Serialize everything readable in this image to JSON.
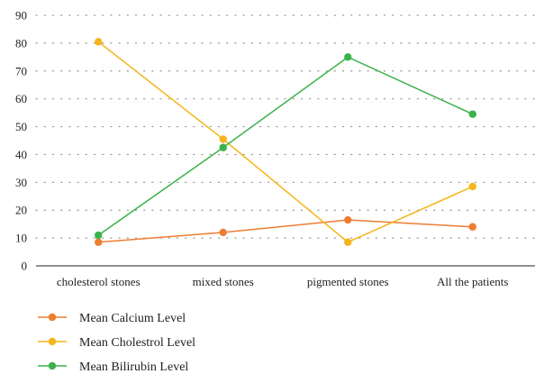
{
  "chart_data": {
    "type": "line",
    "categories": [
      "cholesterol stones",
      "mixed stones",
      "pigmented stones",
      "All the patients"
    ],
    "ylim": [
      0,
      90
    ],
    "yticks": [
      0,
      10,
      20,
      30,
      40,
      50,
      60,
      70,
      80,
      90
    ],
    "grid": "horizontal dotted",
    "legend_position": "bottom-left",
    "series": [
      {
        "name": "Mean Calcium Level",
        "color": "#ED7D31",
        "values": [
          8.5,
          12,
          16.5,
          14
        ]
      },
      {
        "name": "Mean Cholestrol Level",
        "color": "#F5B51B",
        "values": [
          80.5,
          45.5,
          8.5,
          28.5
        ]
      },
      {
        "name": "Mean Bilirubin Level",
        "color": "#3BB24A",
        "values": [
          11,
          42.5,
          75,
          54.5
        ]
      }
    ]
  }
}
